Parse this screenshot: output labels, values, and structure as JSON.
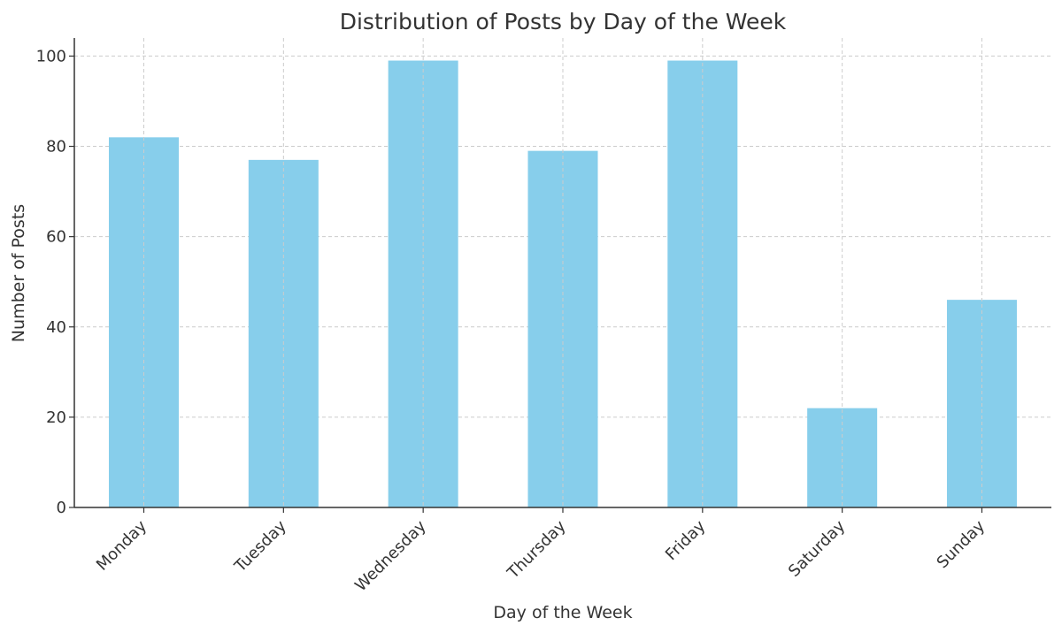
{
  "chart_data": {
    "type": "bar",
    "title": "Distribution of Posts by Day of the Week",
    "xlabel": "Day of the Week",
    "ylabel": "Number of Posts",
    "categories": [
      "Monday",
      "Tuesday",
      "Wednesday",
      "Thursday",
      "Friday",
      "Saturday",
      "Sunday"
    ],
    "values": [
      82,
      77,
      99,
      79,
      99,
      22,
      46
    ],
    "ylim": [
      0,
      104
    ],
    "yticks": [
      0,
      20,
      40,
      60,
      80,
      100
    ],
    "grid": true,
    "bar_color": "#87CEEB"
  }
}
